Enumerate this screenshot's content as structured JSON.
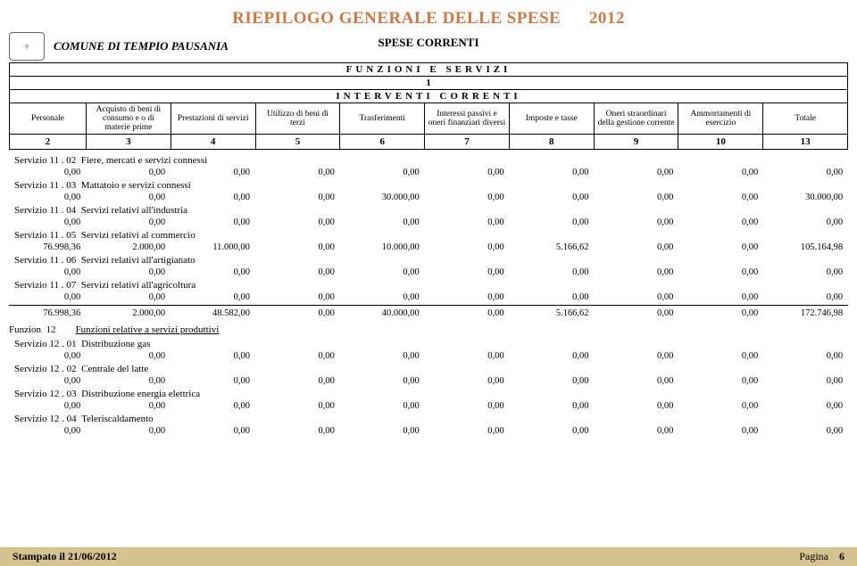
{
  "title": "RIEPILOGO GENERALE DELLE SPESE",
  "year": "2012",
  "comune": "COMUNE DI TEMPIO PAUSANIA",
  "section": "SPESE CORRENTI",
  "header_box": {
    "line1": "FUNZIONI E SERVIZI",
    "line1_sub": "1",
    "line2": "INTERVENTI CORRENTI",
    "columns": [
      "Personale",
      "Acquisto di beni di consumo e o di materie prime",
      "Prestazioni di servizi",
      "Utilizzo di beni di terzi",
      "Trasferimenti",
      "Interessi passivi e oneri finanziari diversi",
      "Imposte e tasse",
      "Oneri straordinari della gestione corrente",
      "Ammortamenti di esercizio",
      "Totale"
    ],
    "col_nums": [
      "2",
      "3",
      "4",
      "5",
      "6",
      "7",
      "8",
      "9",
      "10",
      "13"
    ]
  },
  "rows": [
    {
      "label": "Servizio 11 . 02",
      "title": "Fiere, mercati e servizi connessi",
      "vals": [
        "0,00",
        "0,00",
        "0,00",
        "0,00",
        "0,00",
        "0,00",
        "0,00",
        "0,00",
        "0,00",
        "0,00"
      ]
    },
    {
      "label": "Servizio 11 . 03",
      "title": "Mattatoio e servizi connessi",
      "vals": [
        "0,00",
        "0,00",
        "0,00",
        "0,00",
        "30.000,00",
        "0,00",
        "0,00",
        "0,00",
        "0,00",
        "30.000,00"
      ]
    },
    {
      "label": "Servizio 11 . 04",
      "title": "Servizi relativi all'industria",
      "vals": [
        "0,00",
        "0,00",
        "0,00",
        "0,00",
        "0,00",
        "0,00",
        "0,00",
        "0,00",
        "0,00",
        "0,00"
      ]
    },
    {
      "label": "Servizio 11 . 05",
      "title": "Servizi relativi al commercio",
      "vals": [
        "76.998,36",
        "2.000,00",
        "11.000,00",
        "0,00",
        "10.000,00",
        "0,00",
        "5.166,62",
        "0,00",
        "0,00",
        "105.164,98"
      ]
    },
    {
      "label": "Servizio 11 . 06",
      "title": "Servizi relativi all'artigianato",
      "vals": [
        "0,00",
        "0,00",
        "0,00",
        "0,00",
        "0,00",
        "0,00",
        "0,00",
        "0,00",
        "0,00",
        "0,00"
      ]
    },
    {
      "label": "Servizio 11 . 07",
      "title": "Servizi relativi all'agricoltura",
      "vals": [
        "0,00",
        "0,00",
        "0,00",
        "0,00",
        "0,00",
        "0,00",
        "0,00",
        "0,00",
        "0,00",
        "0,00"
      ]
    }
  ],
  "subtotal": [
    "76.998,36",
    "2.000,00",
    "48.582,00",
    "0,00",
    "40.000,00",
    "0,00",
    "5.166,62",
    "0,00",
    "0,00",
    "172.746,98"
  ],
  "funzion": {
    "label": "Funzion",
    "num": "12",
    "title": "Funzioni relative a servizi produttivi"
  },
  "rows2": [
    {
      "label": "Servizio 12 . 01",
      "title": "Distribuzione gas",
      "vals": [
        "0,00",
        "0,00",
        "0,00",
        "0,00",
        "0,00",
        "0,00",
        "0,00",
        "0,00",
        "0,00",
        "0,00"
      ]
    },
    {
      "label": "Servizio 12 . 02",
      "title": "Centrale del latte",
      "vals": [
        "0,00",
        "0,00",
        "0,00",
        "0,00",
        "0,00",
        "0,00",
        "0,00",
        "0,00",
        "0,00",
        "0,00"
      ]
    },
    {
      "label": "Servizio 12 . 03",
      "title": "Distribuzione energia elettrica",
      "vals": [
        "0,00",
        "0,00",
        "0,00",
        "0,00",
        "0,00",
        "0,00",
        "0,00",
        "0,00",
        "0,00",
        "0,00"
      ]
    },
    {
      "label": "Servizio 12 . 04",
      "title": "Teleriscaldamento",
      "vals": [
        "0,00",
        "0,00",
        "0,00",
        "0,00",
        "0,00",
        "0,00",
        "0,00",
        "0,00",
        "0,00",
        "0,00"
      ]
    }
  ],
  "footer": {
    "stampato": "Stampato il 21/06/2012",
    "pagina_label": "Pagina",
    "pagina_num": "6"
  },
  "colors": {
    "accent": "#d4763e",
    "footer_bg": "#d4c38f"
  }
}
